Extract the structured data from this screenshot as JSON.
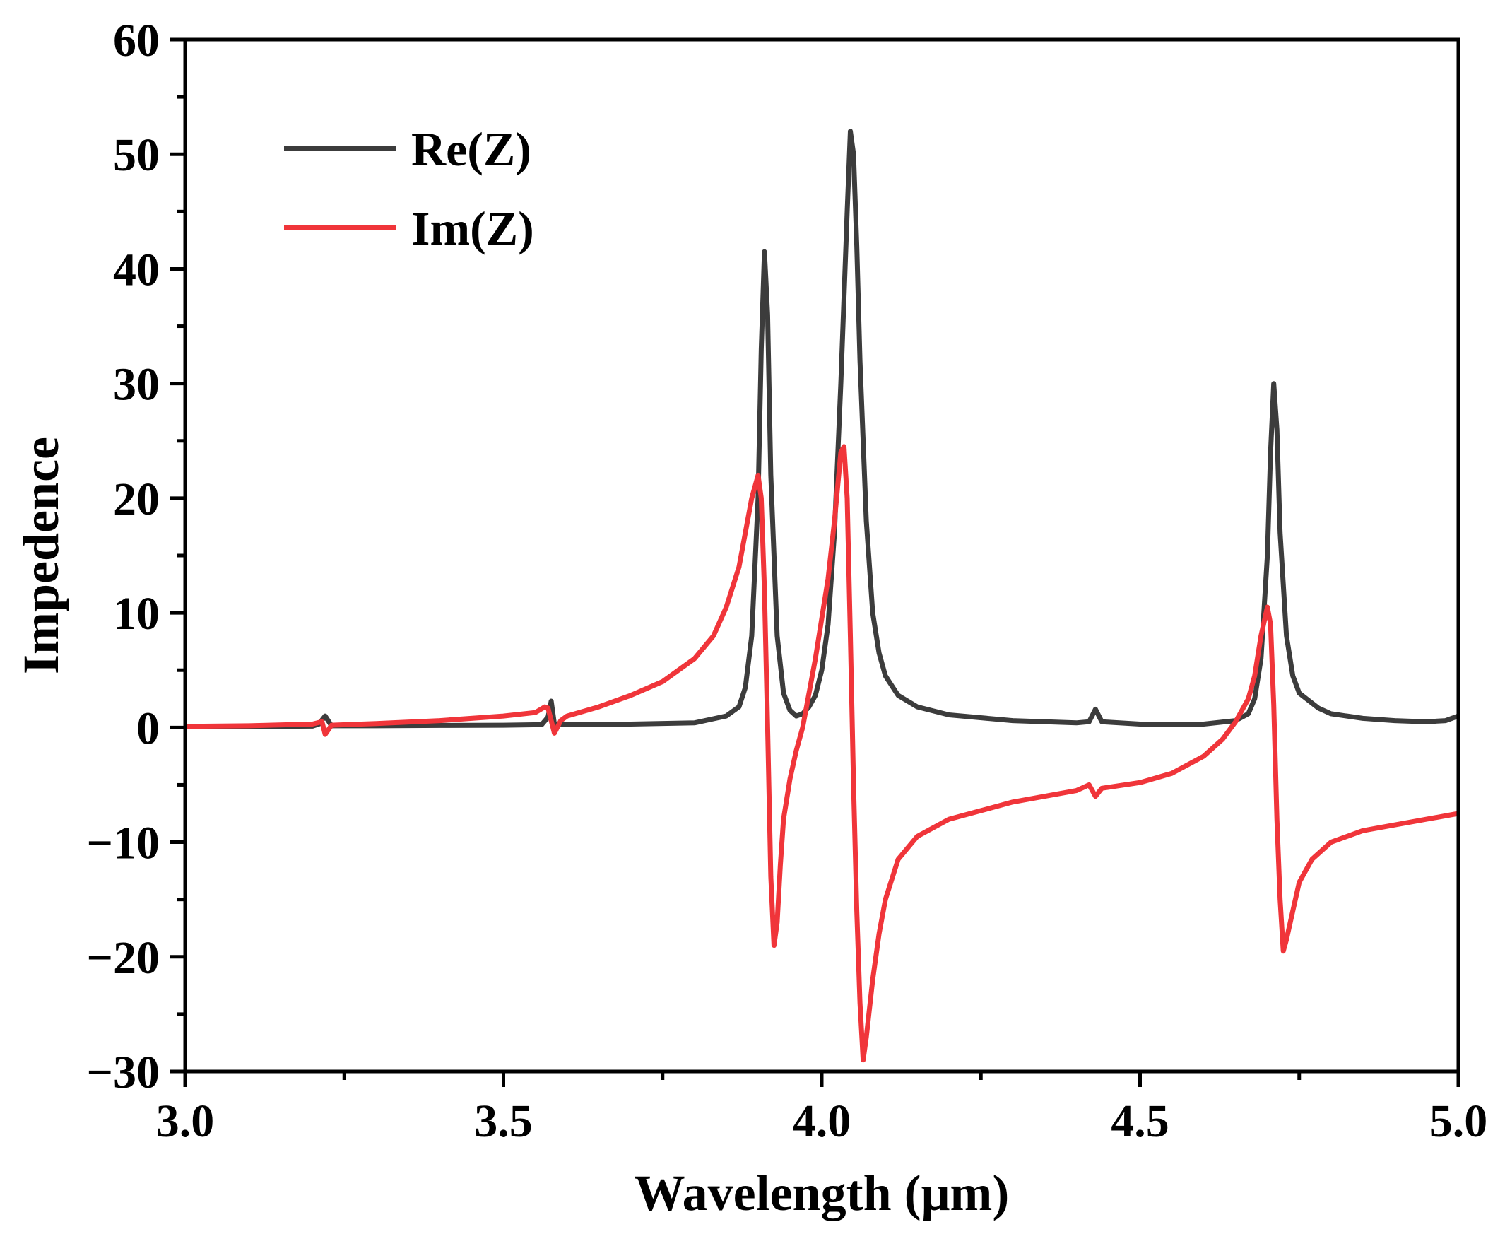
{
  "chart_data": {
    "type": "line",
    "title": "",
    "xlabel": "Wavelength (μm)",
    "ylabel": "Impedence",
    "xlim": [
      3.0,
      5.0
    ],
    "ylim": [
      -30,
      60
    ],
    "xticks": [
      3.0,
      3.5,
      4.0,
      4.5,
      5.0
    ],
    "xtick_labels": [
      "3.0",
      "3.5",
      "4.0",
      "4.5",
      "5.0"
    ],
    "yticks": [
      -30,
      -20,
      -10,
      0,
      10,
      20,
      30,
      40,
      50,
      60
    ],
    "ytick_labels": [
      "−30",
      "−20",
      "−10",
      "0",
      "10",
      "20",
      "30",
      "40",
      "50",
      "60"
    ],
    "grid": false,
    "legend_position": "top-left",
    "series": [
      {
        "name": "Re(Z)",
        "color": "#3c3c3c",
        "points": [
          [
            3.0,
            0.05
          ],
          [
            3.1,
            0.08
          ],
          [
            3.2,
            0.12
          ],
          [
            3.21,
            0.3
          ],
          [
            3.22,
            1.0
          ],
          [
            3.23,
            0.15
          ],
          [
            3.3,
            0.15
          ],
          [
            3.4,
            0.18
          ],
          [
            3.5,
            0.2
          ],
          [
            3.56,
            0.25
          ],
          [
            3.57,
            0.9
          ],
          [
            3.575,
            2.3
          ],
          [
            3.58,
            0.3
          ],
          [
            3.6,
            0.25
          ],
          [
            3.7,
            0.3
          ],
          [
            3.8,
            0.4
          ],
          [
            3.85,
            1.0
          ],
          [
            3.87,
            1.8
          ],
          [
            3.88,
            3.5
          ],
          [
            3.89,
            8.0
          ],
          [
            3.9,
            20.0
          ],
          [
            3.905,
            33.0
          ],
          [
            3.91,
            41.5
          ],
          [
            3.915,
            36.0
          ],
          [
            3.92,
            22.0
          ],
          [
            3.93,
            8.0
          ],
          [
            3.94,
            3.0
          ],
          [
            3.95,
            1.5
          ],
          [
            3.96,
            1.0
          ],
          [
            3.97,
            1.2
          ],
          [
            3.98,
            1.8
          ],
          [
            3.99,
            2.8
          ],
          [
            4.0,
            5.0
          ],
          [
            4.01,
            9.0
          ],
          [
            4.02,
            17.0
          ],
          [
            4.03,
            30.0
          ],
          [
            4.04,
            45.0
          ],
          [
            4.045,
            52.0
          ],
          [
            4.05,
            50.0
          ],
          [
            4.055,
            42.0
          ],
          [
            4.06,
            32.0
          ],
          [
            4.07,
            18.0
          ],
          [
            4.08,
            10.0
          ],
          [
            4.09,
            6.5
          ],
          [
            4.1,
            4.5
          ],
          [
            4.12,
            2.8
          ],
          [
            4.15,
            1.8
          ],
          [
            4.2,
            1.1
          ],
          [
            4.3,
            0.6
          ],
          [
            4.4,
            0.4
          ],
          [
            4.42,
            0.5
          ],
          [
            4.43,
            1.6
          ],
          [
            4.44,
            0.5
          ],
          [
            4.5,
            0.3
          ],
          [
            4.6,
            0.3
          ],
          [
            4.65,
            0.6
          ],
          [
            4.67,
            1.2
          ],
          [
            4.68,
            2.5
          ],
          [
            4.69,
            6.0
          ],
          [
            4.7,
            15.0
          ],
          [
            4.705,
            24.0
          ],
          [
            4.71,
            30.0
          ],
          [
            4.715,
            26.0
          ],
          [
            4.72,
            17.0
          ],
          [
            4.73,
            8.0
          ],
          [
            4.74,
            4.5
          ],
          [
            4.75,
            3.0
          ],
          [
            4.78,
            1.7
          ],
          [
            4.8,
            1.2
          ],
          [
            4.85,
            0.8
          ],
          [
            4.9,
            0.6
          ],
          [
            4.95,
            0.5
          ],
          [
            4.98,
            0.6
          ],
          [
            5.0,
            1.0
          ]
        ]
      },
      {
        "name": "Im(Z)",
        "color": "#f0353a",
        "points": [
          [
            3.0,
            0.1
          ],
          [
            3.1,
            0.15
          ],
          [
            3.2,
            0.3
          ],
          [
            3.215,
            0.5
          ],
          [
            3.22,
            -0.6
          ],
          [
            3.23,
            0.2
          ],
          [
            3.3,
            0.35
          ],
          [
            3.4,
            0.6
          ],
          [
            3.5,
            1.0
          ],
          [
            3.55,
            1.3
          ],
          [
            3.565,
            1.8
          ],
          [
            3.57,
            1.7
          ],
          [
            3.58,
            -0.5
          ],
          [
            3.59,
            0.6
          ],
          [
            3.6,
            1.0
          ],
          [
            3.65,
            1.8
          ],
          [
            3.7,
            2.8
          ],
          [
            3.75,
            4.0
          ],
          [
            3.8,
            6.0
          ],
          [
            3.83,
            8.0
          ],
          [
            3.85,
            10.5
          ],
          [
            3.87,
            14.0
          ],
          [
            3.88,
            17.0
          ],
          [
            3.89,
            20.0
          ],
          [
            3.9,
            22.0
          ],
          [
            3.905,
            20.0
          ],
          [
            3.91,
            12.0
          ],
          [
            3.915,
            0.0
          ],
          [
            3.92,
            -13.0
          ],
          [
            3.925,
            -19.0
          ],
          [
            3.93,
            -17.0
          ],
          [
            3.935,
            -12.0
          ],
          [
            3.94,
            -8.0
          ],
          [
            3.95,
            -4.5
          ],
          [
            3.96,
            -2.0
          ],
          [
            3.97,
            0.0
          ],
          [
            3.98,
            3.0
          ],
          [
            3.99,
            6.0
          ],
          [
            4.0,
            9.5
          ],
          [
            4.01,
            13.0
          ],
          [
            4.02,
            18.0
          ],
          [
            4.03,
            24.0
          ],
          [
            4.035,
            24.5
          ],
          [
            4.04,
            20.0
          ],
          [
            4.045,
            8.0
          ],
          [
            4.05,
            -5.0
          ],
          [
            4.055,
            -16.0
          ],
          [
            4.06,
            -24.0
          ],
          [
            4.065,
            -29.0
          ],
          [
            4.07,
            -27.0
          ],
          [
            4.08,
            -22.0
          ],
          [
            4.09,
            -18.0
          ],
          [
            4.1,
            -15.0
          ],
          [
            4.12,
            -11.5
          ],
          [
            4.15,
            -9.5
          ],
          [
            4.2,
            -8.0
          ],
          [
            4.3,
            -6.5
          ],
          [
            4.4,
            -5.5
          ],
          [
            4.42,
            -5.0
          ],
          [
            4.43,
            -6.0
          ],
          [
            4.44,
            -5.3
          ],
          [
            4.5,
            -4.8
          ],
          [
            4.55,
            -4.0
          ],
          [
            4.6,
            -2.5
          ],
          [
            4.63,
            -1.0
          ],
          [
            4.65,
            0.5
          ],
          [
            4.67,
            2.5
          ],
          [
            4.68,
            4.5
          ],
          [
            4.69,
            8.0
          ],
          [
            4.7,
            10.5
          ],
          [
            4.705,
            9.0
          ],
          [
            4.71,
            2.0
          ],
          [
            4.715,
            -8.0
          ],
          [
            4.72,
            -15.0
          ],
          [
            4.725,
            -19.5
          ],
          [
            4.73,
            -18.5
          ],
          [
            4.74,
            -16.0
          ],
          [
            4.75,
            -13.5
          ],
          [
            4.77,
            -11.5
          ],
          [
            4.8,
            -10.0
          ],
          [
            4.85,
            -9.0
          ],
          [
            4.9,
            -8.5
          ],
          [
            4.95,
            -8.0
          ],
          [
            5.0,
            -7.5
          ]
        ]
      }
    ]
  }
}
